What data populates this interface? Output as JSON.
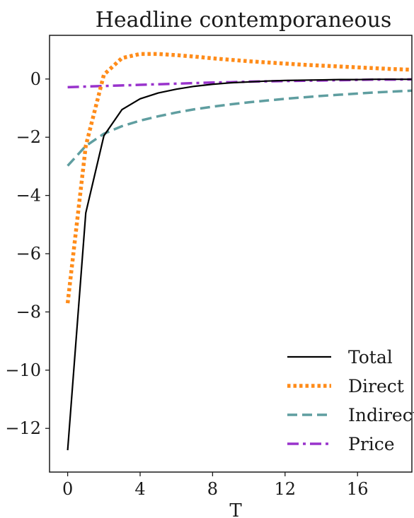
{
  "chart_data": {
    "type": "line",
    "title": "Headline contemporaneous",
    "xlabel": "T",
    "ylabel": "",
    "xlim": [
      -1,
      19
    ],
    "ylim": [
      -13.5,
      1.5
    ],
    "xticks": [
      0,
      4,
      8,
      12,
      16
    ],
    "yticks": [
      0,
      -2,
      -4,
      -6,
      -8,
      -10,
      -12
    ],
    "grid": false,
    "legend_position": "bottom-right",
    "x": [
      0,
      1,
      2,
      3,
      4,
      5,
      6,
      7,
      8,
      9,
      10,
      11,
      12,
      13,
      14,
      15,
      16,
      17,
      18,
      19
    ],
    "series": [
      {
        "name": "Total",
        "color": "#000000",
        "style": "solid",
        "values": [
          -12.75,
          -4.6,
          -1.95,
          -1.05,
          -0.68,
          -0.48,
          -0.35,
          -0.25,
          -0.18,
          -0.13,
          -0.1,
          -0.07,
          -0.05,
          -0.04,
          -0.03,
          -0.02,
          -0.02,
          -0.01,
          -0.01,
          -0.01
        ]
      },
      {
        "name": "Direct",
        "color": "#ff8c1a",
        "style": "dotted",
        "values": [
          -7.7,
          -2.3,
          0.15,
          0.72,
          0.86,
          0.86,
          0.82,
          0.77,
          0.71,
          0.66,
          0.61,
          0.57,
          0.53,
          0.49,
          0.46,
          0.43,
          0.4,
          0.37,
          0.34,
          0.32
        ]
      },
      {
        "name": "Indirect",
        "color": "#5f9ea0",
        "style": "dashed",
        "values": [
          -2.98,
          -2.3,
          -1.88,
          -1.62,
          -1.43,
          -1.28,
          -1.15,
          -1.04,
          -0.95,
          -0.87,
          -0.8,
          -0.74,
          -0.68,
          -0.63,
          -0.58,
          -0.54,
          -0.5,
          -0.46,
          -0.43,
          -0.4
        ]
      },
      {
        "name": "Price",
        "color": "#9933cc",
        "style": "dashdot",
        "values": [
          -0.28,
          -0.26,
          -0.24,
          -0.22,
          -0.2,
          -0.18,
          -0.16,
          -0.14,
          -0.12,
          -0.11,
          -0.09,
          -0.08,
          -0.07,
          -0.06,
          -0.05,
          -0.04,
          -0.03,
          -0.02,
          -0.02,
          -0.01
        ]
      }
    ]
  }
}
